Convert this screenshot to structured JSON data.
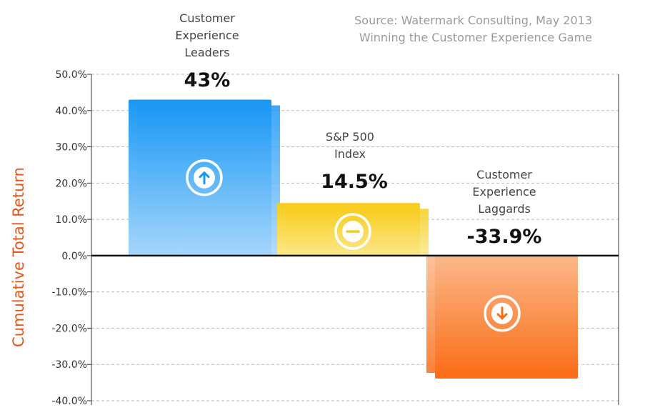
{
  "chart_data": {
    "type": "bar",
    "source_lines": [
      "Source: Watermark Consulting, May 2013",
      "Winning the Customer Experience Game"
    ],
    "ylabel": "Cumulative Total Return",
    "ylim": [
      -40,
      50
    ],
    "yticks": [
      "50.0%",
      "40.0%",
      "30.0%",
      "20.0%",
      "10.0%",
      "0.0%",
      "-10.0%",
      "-20.0%",
      "-30.0%",
      "-40.0%"
    ],
    "grid": true,
    "categories": [
      {
        "lines": [
          "Customer",
          "Experience",
          "Leaders"
        ],
        "value": 43,
        "value_label": "43%",
        "icon": "arrow-up-circle-icon"
      },
      {
        "lines": [
          "S&P 500",
          "Index"
        ],
        "value": 14.5,
        "value_label": "14.5%",
        "icon": "minus-circle-icon"
      },
      {
        "lines": [
          "Customer",
          "Experience",
          "Laggards"
        ],
        "value": -33.9,
        "value_label": "-33.9%",
        "icon": "arrow-down-circle-icon"
      }
    ],
    "colors": {
      "leaders_top": "#1a98f5",
      "leaders_bottom": "#a6d6fb",
      "sp500_top": "#f7cc1c",
      "sp500_bottom": "#fbe88a",
      "laggards_top": "#fbb88a",
      "laggards_bottom": "#fb6c16",
      "ylabel": "#e2581e",
      "zero_line": "#111111",
      "grid": "#bbbbbb"
    }
  }
}
